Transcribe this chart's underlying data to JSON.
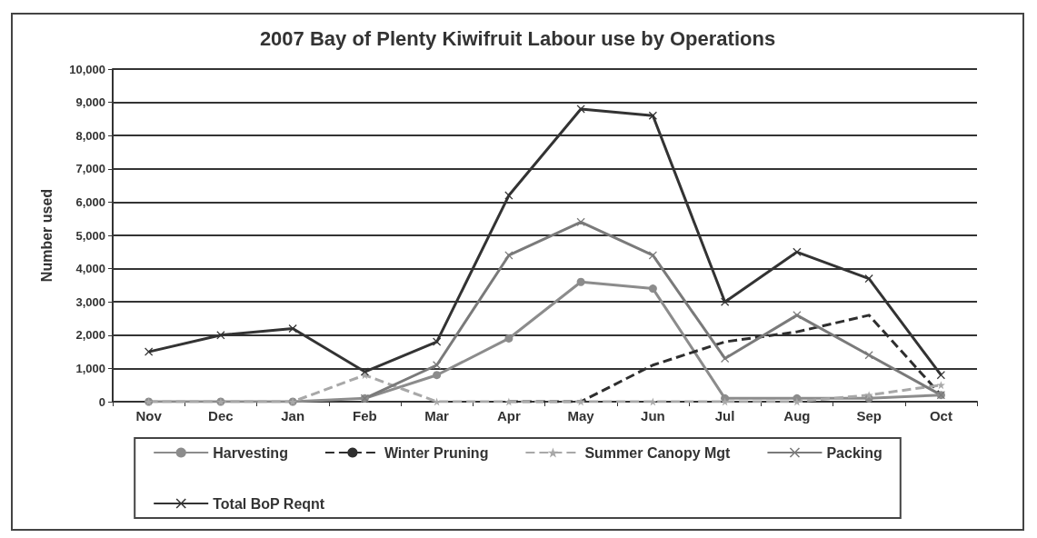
{
  "chart_data": {
    "type": "line",
    "title": "2007 Bay of Plenty Kiwifruit Labour use by Operations",
    "ylabel": "Number used",
    "categories": [
      "Nov",
      "Dec",
      "Jan",
      "Feb",
      "Mar",
      "Apr",
      "May",
      "Jun",
      "Jul",
      "Aug",
      "Sep",
      "Oct"
    ],
    "series": [
      {
        "name": "Harvesting",
        "color": "#8c8c8c",
        "marker": "circle",
        "line_style": "solid",
        "values": [
          0,
          0,
          0,
          100,
          800,
          1900,
          3600,
          3400,
          100,
          100,
          100,
          200
        ]
      },
      {
        "name": "Winter Pruning",
        "color": "#2e2e2e",
        "marker": "none",
        "line_style": "dashed",
        "values": [
          null,
          null,
          null,
          null,
          null,
          0,
          0,
          1100,
          1800,
          2100,
          2600,
          200
        ]
      },
      {
        "name": "Summer Canopy Mgt",
        "color": "#a8a8a8",
        "marker": "star",
        "line_style": "dashed",
        "values": [
          0,
          0,
          0,
          800,
          0,
          0,
          0,
          0,
          0,
          0,
          200,
          500
        ]
      },
      {
        "name": "Packing",
        "color": "#7a7a7a",
        "marker": "cross",
        "line_style": "solid",
        "values": [
          null,
          null,
          null,
          100,
          1100,
          4400,
          5400,
          4400,
          1300,
          2600,
          1400,
          200
        ]
      },
      {
        "name": "Total BoP Reqnt",
        "color": "#333333",
        "marker": "cross",
        "line_style": "solid",
        "values": [
          1500,
          2000,
          2200,
          900,
          1800,
          6200,
          8800,
          8600,
          3000,
          4500,
          3700,
          800
        ]
      }
    ],
    "ylim": [
      0,
      10000
    ],
    "yticks": [
      {
        "value": 0,
        "label": "0"
      },
      {
        "value": 1000,
        "label": "1,000"
      },
      {
        "value": 2000,
        "label": "2,000"
      },
      {
        "value": 3000,
        "label": "3,000"
      },
      {
        "value": 4000,
        "label": "4,000"
      },
      {
        "value": 5000,
        "label": "5,000"
      },
      {
        "value": 6000,
        "label": "6,000"
      },
      {
        "value": 7000,
        "label": "7,000"
      },
      {
        "value": 8000,
        "label": "8,000"
      },
      {
        "value": 9000,
        "label": "9,000"
      },
      {
        "value": 10000,
        "label": "10,000"
      }
    ],
    "grid": "y",
    "legend": "bottom"
  }
}
